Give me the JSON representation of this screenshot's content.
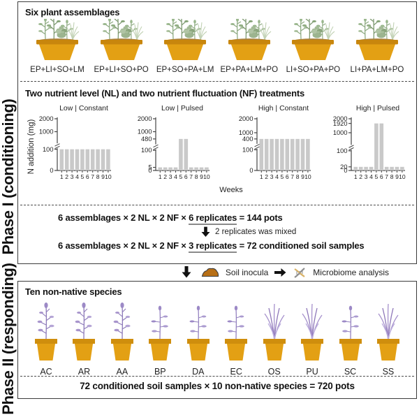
{
  "phase1": {
    "label": "Phase I (conditioning)",
    "assemblages": {
      "title": "Six plant assemblages",
      "items": [
        "EP+LI+SO+LM",
        "EP+LI+SO+PO",
        "EP+SO+PA+LM",
        "EP+PA+LM+PO",
        "LI+SO+PA+PO",
        "LI+PA+LM+PO"
      ]
    },
    "treatments": {
      "title": "Two nutrient level (NL) and two nutrient fluctuation (NF) treatments",
      "ylabel": "N addition (mg)",
      "xlabel": "Weeks"
    },
    "formulas": {
      "line1_prefix": "6 assemblages × 2 NL × 2 NF × ",
      "line1_underlined": "6 replicates",
      "line1_suffix": " = 144 pots",
      "mixed_note": "2 replicates was mixed",
      "line2_prefix": "6 assemblages × 2 NL × 2 NF × ",
      "line2_underlined": "3 replicates",
      "line2_suffix": " = 72 conditioned soil samples"
    }
  },
  "between": {
    "soil_label": "Soil inocula",
    "microbiome_label": "Microbiome analysis"
  },
  "phase2": {
    "label": "Phase II (responding)",
    "title": "Ten non-native species",
    "species": [
      "AC",
      "AR",
      "AA",
      "BP",
      "DA",
      "EC",
      "OS",
      "PU",
      "SC",
      "SS"
    ],
    "formula": "72 conditioned soil samples × 10 non-native species = 720 pots"
  },
  "chart_data": [
    {
      "type": "bar",
      "title": "Low | Constant",
      "x": [
        1,
        2,
        3,
        4,
        5,
        6,
        7,
        8,
        9,
        10
      ],
      "values": [
        100,
        100,
        100,
        100,
        100,
        100,
        100,
        100,
        100,
        100
      ],
      "yticks": [
        {
          "label": "0",
          "value": 0,
          "f": 0
        },
        {
          "label": "100",
          "value": 100,
          "f": 0.41
        },
        {
          "label": "1000",
          "value": 1000,
          "f": 0.75
        },
        {
          "label": "2000",
          "value": 2000,
          "f": 1.0
        }
      ],
      "axis_break_above": 100,
      "ylabel": "N addition (mg)",
      "xlabel": "Weeks"
    },
    {
      "type": "bar",
      "title": "Low | Pulsed",
      "x": [
        1,
        2,
        3,
        4,
        5,
        6,
        7,
        8,
        9,
        10
      ],
      "values": [
        5,
        5,
        5,
        5,
        480,
        480,
        5,
        5,
        5,
        5
      ],
      "yticks": [
        {
          "label": "0",
          "value": 0,
          "f": 0
        },
        {
          "label": "5",
          "value": 5,
          "f": 0.06
        },
        {
          "label": "100",
          "value": 100,
          "f": 0.39
        },
        {
          "label": "480",
          "value": 480,
          "f": 0.61
        },
        {
          "label": "1000",
          "value": 1000,
          "f": 0.75
        },
        {
          "label": "2000",
          "value": 2000,
          "f": 1.0
        }
      ],
      "axis_break_above": 100,
      "ylabel": "N addition (mg)",
      "xlabel": "Weeks"
    },
    {
      "type": "bar",
      "title": "High | Constant",
      "x": [
        1,
        2,
        3,
        4,
        5,
        6,
        7,
        8,
        9,
        10
      ],
      "values": [
        400,
        400,
        400,
        400,
        400,
        400,
        400,
        400,
        400,
        400
      ],
      "yticks": [
        {
          "label": "0",
          "value": 0,
          "f": 0
        },
        {
          "label": "100",
          "value": 100,
          "f": 0.4
        },
        {
          "label": "400",
          "value": 400,
          "f": 0.61
        },
        {
          "label": "1000",
          "value": 1000,
          "f": 0.73
        },
        {
          "label": "2000",
          "value": 2000,
          "f": 1.0
        }
      ],
      "axis_break_above": 100,
      "ylabel": "N addition (mg)",
      "xlabel": "Weeks"
    },
    {
      "type": "bar",
      "title": "High | Pulsed",
      "x": [
        1,
        2,
        3,
        4,
        5,
        6,
        7,
        8,
        9,
        10
      ],
      "values": [
        20,
        20,
        20,
        20,
        1920,
        1920,
        20,
        20,
        20,
        20
      ],
      "yticks": [
        {
          "label": "0",
          "value": 0,
          "f": 0
        },
        {
          "label": "20",
          "value": 20,
          "f": 0.07
        },
        {
          "label": "100",
          "value": 100,
          "f": 0.38
        },
        {
          "label": "1000",
          "value": 1000,
          "f": 0.73
        },
        {
          "label": "1920",
          "value": 1920,
          "f": 0.91
        },
        {
          "label": "2000",
          "value": 2000,
          "f": 1.0
        }
      ],
      "axis_break_above": 100,
      "ylabel": "N addition (mg)",
      "xlabel": "Weeks"
    }
  ],
  "colors": {
    "pot_body": "#e3a014",
    "pot_rim": "#c8860d",
    "soil": "#a9823f",
    "bar": "#c9c9c9",
    "plant_green": "#9fb795",
    "plant_purple": "#a791cc",
    "soil_icon": "#b76f16",
    "dna_gold": "#d9b266",
    "dna_gray": "#8f8f8f",
    "border": "#3c3c3c"
  }
}
